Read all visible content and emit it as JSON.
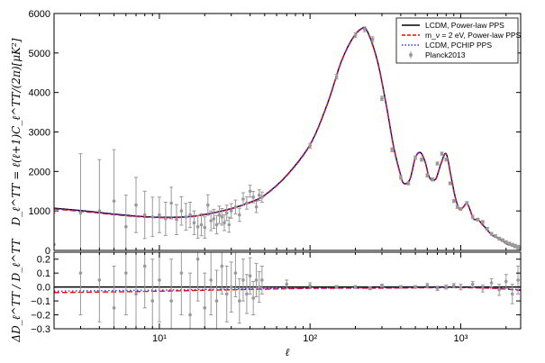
{
  "chart_data": [
    {
      "type": "line",
      "panel": "top",
      "xscale": "log",
      "xlim": [
        2,
        2500
      ],
      "ylim": [
        0,
        6000
      ],
      "ylabel": "D_ℓ^TT = ℓ(ℓ+1)C_ℓ^TT/(2π)[μK²]",
      "yticks": [
        0,
        1000,
        2000,
        3000,
        4000,
        5000,
        6000
      ],
      "ytick_labels": [
        "0",
        "1000",
        "2000",
        "3000",
        "4000",
        "5000",
        "6000"
      ],
      "legend_position": "top-right",
      "series": [
        {
          "name": "LCDM, Power-law PPS",
          "color": "#000000",
          "style": "solid",
          "x": [
            2,
            3,
            4,
            5,
            7,
            10,
            15,
            20,
            30,
            40,
            50,
            70,
            100,
            130,
            160,
            190,
            220,
            240,
            280,
            320,
            360,
            400,
            420,
            460,
            500,
            540,
            580,
            620,
            680,
            740,
            800,
            860,
            920,
            980,
            1040,
            1100,
            1160,
            1220,
            1300,
            1400,
            1500,
            1600,
            1700,
            1800,
            1900,
            2000,
            2100,
            2200,
            2300,
            2400,
            2500
          ],
          "y": [
            1070,
            1010,
            960,
            920,
            870,
            840,
            850,
            910,
            1060,
            1220,
            1400,
            1900,
            2680,
            3700,
            4750,
            5350,
            5620,
            5550,
            4800,
            3700,
            2600,
            1900,
            1700,
            1800,
            2350,
            2480,
            2250,
            1850,
            1800,
            2200,
            2450,
            1900,
            1350,
            1050,
            1100,
            1200,
            1000,
            800,
            780,
            650,
            520,
            400,
            350,
            290,
            240,
            180,
            150,
            120,
            95,
            75,
            60
          ]
        },
        {
          "name": "m_ν = 2 eV, Power-law PPS",
          "color": "#ff0000",
          "style": "dashed",
          "x": [
            2,
            3,
            4,
            5,
            7,
            10,
            15,
            20,
            30,
            40,
            50,
            70,
            100,
            130,
            160,
            190,
            220,
            240,
            280,
            320,
            360,
            400,
            420,
            460,
            500,
            540,
            580,
            620,
            680,
            740,
            800,
            860,
            920,
            980,
            1040,
            1100,
            1160,
            1220,
            1300,
            1400,
            1500,
            1600,
            1700,
            1800,
            1900,
            2000,
            2100,
            2200,
            2300,
            2400,
            2500
          ],
          "y": [
            1050,
            990,
            945,
            905,
            858,
            830,
            842,
            902,
            1050,
            1210,
            1390,
            1890,
            2670,
            3690,
            4740,
            5340,
            5610,
            5540,
            4790,
            3690,
            2590,
            1890,
            1690,
            1790,
            2340,
            2470,
            2240,
            1840,
            1790,
            2190,
            2440,
            1890,
            1340,
            1040,
            1090,
            1190,
            990,
            790,
            770,
            640,
            510,
            390,
            340,
            280,
            230,
            170,
            140,
            110,
            88,
            68,
            54
          ]
        },
        {
          "name": "LCDM, PCHIP PPS",
          "color": "#3333ff",
          "style": "dotted",
          "x": [
            2,
            3,
            4,
            5,
            7,
            10,
            15,
            20,
            30,
            40,
            50,
            70,
            100,
            130,
            160,
            190,
            220,
            240,
            280,
            320,
            360,
            400,
            420,
            460,
            500,
            540,
            580,
            620,
            680,
            740,
            800,
            860,
            920,
            980,
            1040,
            1100,
            1160,
            1220,
            1300,
            1400,
            1500,
            1600,
            1700,
            1800,
            1900,
            2000,
            2100,
            2200,
            2300,
            2400,
            2500
          ],
          "y": [
            1060,
            1000,
            952,
            912,
            864,
            835,
            846,
            906,
            1055,
            1215,
            1395,
            1895,
            2675,
            3695,
            4745,
            5345,
            5615,
            5545,
            4795,
            3695,
            2595,
            1895,
            1695,
            1795,
            2345,
            2475,
            2245,
            1845,
            1795,
            2195,
            2445,
            1895,
            1345,
            1045,
            1095,
            1195,
            995,
            795,
            775,
            645,
            515,
            395,
            345,
            285,
            235,
            175,
            145,
            115,
            90,
            71,
            57
          ]
        },
        {
          "name": "Planck2013",
          "color": "#999999",
          "style": "errorbar",
          "x": [
            2,
            3,
            4,
            5,
            6,
            7,
            8,
            9,
            10,
            11,
            12,
            13,
            14,
            15,
            16,
            17,
            18,
            19,
            20,
            21,
            22,
            23,
            24,
            25,
            26,
            27,
            28,
            29,
            30,
            32,
            34,
            36,
            38,
            40,
            42,
            44,
            46,
            48,
            100,
            150,
            200,
            230,
            260,
            300,
            350,
            400,
            450,
            500,
            550,
            600,
            650,
            700,
            750,
            800,
            850,
            900,
            950,
            1000,
            1100,
            1200,
            1300,
            1400,
            1500,
            1600,
            1700,
            1800,
            1900,
            2000,
            2100,
            2200,
            2300,
            2400,
            2480
          ],
          "y": [
            150,
            950,
            1000,
            1250,
            600,
            1150,
            900,
            850,
            900,
            800,
            1200,
            780,
            1000,
            850,
            900,
            700,
            600,
            650,
            580,
            1150,
            750,
            800,
            650,
            900,
            850,
            700,
            950,
            650,
            1000,
            1100,
            900,
            1300,
            1200,
            1500,
            1350,
            1100,
            1400,
            1350,
            2650,
            4400,
            5450,
            5600,
            5350,
            3850,
            2550,
            1850,
            1700,
            2350,
            2300,
            1900,
            1800,
            2200,
            2450,
            2300,
            1700,
            1250,
            1100,
            1050,
            1200,
            850,
            780,
            720,
            550,
            420,
            360,
            300,
            260,
            210,
            170,
            140,
            110,
            80,
            50
          ],
          "err": [
            800,
            1500,
            1300,
            1300,
            800,
            700,
            600,
            500,
            450,
            420,
            400,
            380,
            360,
            340,
            320,
            300,
            290,
            280,
            270,
            260,
            250,
            240,
            230,
            220,
            210,
            200,
            195,
            190,
            185,
            175,
            165,
            160,
            155,
            150,
            145,
            140,
            135,
            130,
            60,
            60,
            60,
            60,
            60,
            55,
            50,
            45,
            40,
            40,
            40,
            40,
            38,
            38,
            38,
            38,
            36,
            36,
            36,
            36,
            36,
            36,
            36,
            36,
            36,
            36,
            36,
            36,
            36,
            36,
            40,
            40,
            45,
            50,
            60
          ]
        }
      ]
    },
    {
      "type": "line",
      "panel": "bottom",
      "xscale": "log",
      "xlim": [
        2,
        2500
      ],
      "ylim": [
        -0.3,
        0.25
      ],
      "xlabel": "ℓ",
      "ylabel": "ΔD_ℓ^TT / D_ℓ^TT",
      "xticks": [
        10,
        100,
        1000
      ],
      "xtick_labels": [
        "10¹",
        "10²",
        "10³"
      ],
      "yticks": [
        -0.3,
        -0.2,
        -0.1,
        0.0,
        0.1,
        0.2
      ],
      "ytick_labels": [
        "−0.3",
        "−0.2",
        "−0.1",
        "0.0",
        "0.1",
        "0.2"
      ],
      "series": [
        {
          "name": "LCDM, Power-law PPS",
          "color": "#000000",
          "style": "solid",
          "x": [
            2,
            10,
            100,
            1000,
            2500
          ],
          "y": [
            0,
            0,
            0,
            0,
            0
          ]
        },
        {
          "name": "m_ν = 2 eV, Power-law PPS",
          "color": "#ff0000",
          "style": "dashed",
          "x": [
            2,
            5,
            10,
            30,
            100,
            300,
            700,
            1000,
            1500,
            2000,
            2500
          ],
          "y": [
            -0.04,
            -0.035,
            -0.03,
            -0.02,
            -0.01,
            -0.008,
            -0.005,
            -0.005,
            -0.008,
            -0.015,
            -0.025
          ]
        },
        {
          "name": "LCDM, PCHIP PPS",
          "color": "#3333ff",
          "style": "dotted",
          "x": [
            2,
            5,
            10,
            30,
            100,
            300,
            700,
            1000,
            1500,
            2000,
            2500
          ],
          "y": [
            -0.03,
            -0.025,
            -0.022,
            -0.015,
            -0.008,
            -0.006,
            -0.004,
            -0.004,
            -0.006,
            -0.012,
            -0.02
          ]
        },
        {
          "name": "Planck2013",
          "color": "#999999",
          "style": "errorbar",
          "x": [
            3,
            4,
            5,
            6,
            7,
            8,
            9,
            10,
            12,
            14,
            16,
            18,
            20,
            22,
            24,
            26,
            28,
            30,
            32,
            34,
            36,
            38,
            40,
            42,
            44,
            46,
            48,
            70,
            100,
            150,
            200,
            250,
            300,
            400,
            500,
            600,
            700,
            800,
            900,
            1000,
            1200,
            1400,
            1600,
            1800,
            2000,
            2200,
            2400
          ],
          "y": [
            0.1,
            0.05,
            -0.15,
            0.1,
            -0.05,
            0.15,
            -0.1,
            0.05,
            -0.1,
            0.1,
            -0.2,
            0.2,
            -0.15,
            0.05,
            -0.1,
            0.15,
            -0.05,
            0.0,
            0.1,
            -0.1,
            0.05,
            -0.05,
            0.08,
            -0.08,
            0.05,
            0.0,
            0.05,
            0.02,
            0.01,
            0.0,
            0.0,
            -0.01,
            0.01,
            0.0,
            0.0,
            0.01,
            -0.01,
            0.0,
            0.01,
            0.0,
            0.02,
            -0.01,
            0.03,
            -0.02,
            0.04,
            -0.05,
            0.05
          ],
          "err": [
            0.3,
            0.3,
            0.3,
            0.3,
            0.3,
            0.3,
            0.3,
            0.3,
            0.3,
            0.3,
            0.3,
            0.3,
            0.25,
            0.25,
            0.22,
            0.2,
            0.2,
            0.18,
            0.17,
            0.16,
            0.15,
            0.14,
            0.13,
            0.12,
            0.12,
            0.11,
            0.1,
            0.03,
            0.02,
            0.01,
            0.01,
            0.01,
            0.01,
            0.01,
            0.01,
            0.015,
            0.015,
            0.015,
            0.015,
            0.02,
            0.02,
            0.025,
            0.03,
            0.04,
            0.05,
            0.07,
            0.1
          ]
        }
      ]
    }
  ]
}
